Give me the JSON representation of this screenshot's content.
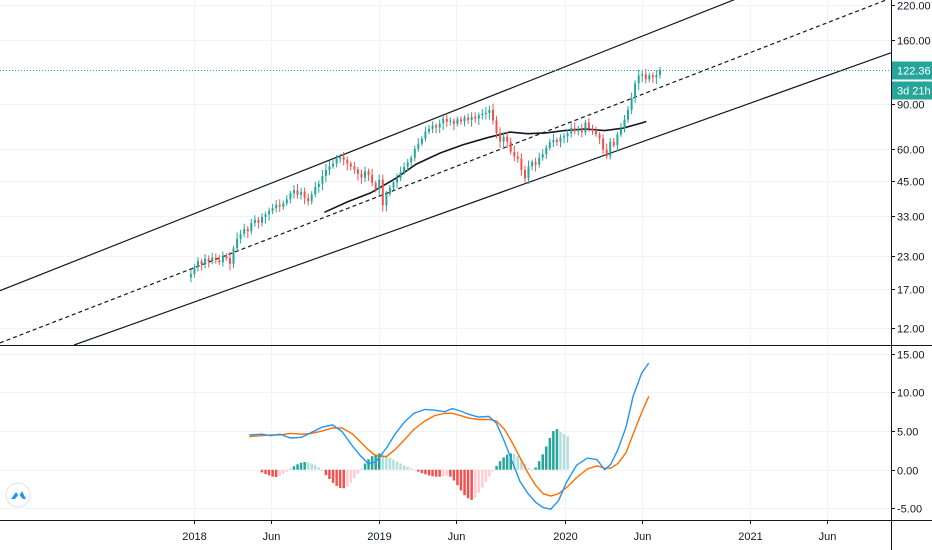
{
  "chart_data": [
    {
      "type": "candlestick",
      "y_scale": "log",
      "ylim": [
        10.3,
        230
      ],
      "y_ticks": [
        "220.00",
        "160.00",
        "122.36",
        "90.00",
        "60.00",
        "45.00",
        "33.00",
        "23.00",
        "17.00",
        "12.00"
      ],
      "y_tick_values": [
        220,
        160,
        90,
        60,
        45,
        33,
        23,
        17,
        12
      ],
      "x_ticks": [
        "2018",
        "Jun",
        "2019",
        "Jun",
        "2020",
        "Jun",
        "2021",
        "Jun"
      ],
      "x_tick_dates": [
        "2018-01-01",
        "2018-06-01",
        "2019-01-01",
        "2019-06-01",
        "2020-01-01",
        "2020-06-01",
        "2021-01-01",
        "2021-06-01"
      ],
      "xlim": [
        "2016-12-15",
        "2021-10-05"
      ],
      "colors": {
        "up": "#26a69a",
        "down": "#ef5350",
        "last_price": "#26a69a"
      },
      "last_price": {
        "value": 122.36,
        "label": "122.36",
        "countdown": "3d 21h"
      },
      "weekly_closes": [
        19.5,
        20.8,
        21.9,
        21.3,
        22.4,
        21.8,
        22.6,
        22.1,
        21.7,
        22.9,
        22.5,
        21.4,
        24.6,
        26.8,
        28.0,
        29.3,
        28.7,
        30.9,
        31.8,
        31.0,
        32.6,
        33.4,
        34.5,
        35.3,
        36.4,
        35.8,
        36.9,
        38.2,
        40.4,
        41.5,
        39.8,
        40.9,
        38.7,
        37.6,
        39.9,
        42.7,
        44.0,
        47.2,
        49.8,
        51.5,
        52.8,
        55.1,
        56.0,
        54.6,
        52.7,
        51.4,
        50.0,
        48.1,
        46.5,
        49.2,
        47.6,
        44.3,
        41.8,
        45.6,
        36.2,
        40.1,
        42.4,
        44.6,
        46.3,
        48.7,
        51.2,
        53.4,
        55.6,
        60.2,
        63.1,
        66.0,
        70.4,
        72.1,
        74.3,
        73.0,
        75.6,
        78.9,
        76.8,
        77.5,
        75.4,
        78.6,
        77.2,
        79.8,
        77.9,
        80.4,
        79.1,
        81.6,
        82.4,
        83.2,
        85.6,
        77.8,
        69.6,
        64.3,
        67.1,
        64.2,
        58.6,
        56.2,
        55.1,
        49.8,
        46.2,
        51.4,
        53.5,
        52.2,
        55.6,
        57.4,
        60.7,
        63.8,
        65.2,
        64.1,
        66.7,
        67.4,
        69.2,
        72.6,
        70.5,
        71.6,
        69.9,
        76.4,
        72.3,
        71.2,
        68.6,
        66.1,
        59.8,
        56.4,
        64.2,
        62.1,
        68.5,
        72.1,
        78.4,
        85.6,
        95.2,
        108.6,
        116.4,
        117.8,
        112.6,
        116.9,
        114.5,
        117.2,
        122.36
      ],
      "overlays": [
        {
          "name": "channel-upper",
          "from": [
            "2016-12-15",
            16.8
          ],
          "to": [
            "2020-12-22",
            240
          ]
        },
        {
          "name": "channel-mid",
          "from": [
            "2016-12-15",
            10.5
          ],
          "to": [
            "2021-10-05",
            234
          ]
        },
        {
          "name": "channel-lower",
          "from": [
            "2017-05-10",
            10.3
          ],
          "to": [
            "2021-10-05",
            143
          ]
        },
        {
          "name": "moving-average",
          "points": [
            [
              "2018-09-15",
              34.0
            ],
            [
              "2018-11-01",
              37.5
            ],
            [
              "2018-12-15",
              40.5
            ],
            [
              "2019-02-01",
              46.0
            ],
            [
              "2019-03-15",
              52.5
            ],
            [
              "2019-05-01",
              58.0
            ],
            [
              "2019-06-15",
              62.5
            ],
            [
              "2019-08-01",
              66.5
            ],
            [
              "2019-09-15",
              70.0
            ],
            [
              "2019-10-20",
              69.0
            ],
            [
              "2019-11-25",
              69.5
            ],
            [
              "2020-01-01",
              71.0
            ],
            [
              "2020-02-10",
              72.0
            ],
            [
              "2020-03-20",
              71.0
            ],
            [
              "2020-04-25",
              72.5
            ],
            [
              "2020-06-01",
              76.0
            ],
            [
              "2020-06-10",
              77.0
            ]
          ]
        }
      ]
    },
    {
      "type": "macd",
      "ylim": [
        -6.5,
        16
      ],
      "y_ticks": [
        "15.00",
        "10.00",
        "5.00",
        "0.00",
        "-5.00"
      ],
      "y_tick_values": [
        15,
        10,
        5,
        0,
        -5
      ],
      "colors": {
        "macd": "#2196f3",
        "signal": "#ff6d00",
        "hist_pos": "#26a69a",
        "hist_neg": "#ef5350"
      },
      "histogram_start": "2018-05-15",
      "histogram": [
        -0.35,
        -0.55,
        -0.75,
        -0.9,
        -0.95,
        -0.8,
        -0.6,
        -0.3,
        0.2,
        0.45,
        0.7,
        0.9,
        1.0,
        0.95,
        0.8,
        0.6,
        0.3,
        -0.2,
        -0.7,
        -1.2,
        -1.7,
        -2.1,
        -2.35,
        -2.4,
        -2.2,
        -1.7,
        -1.1,
        -0.5,
        0.15,
        0.8,
        1.35,
        1.75,
        2.0,
        2.1,
        2.0,
        1.8,
        1.55,
        1.3,
        1.05,
        0.8,
        0.55,
        0.35,
        0.15,
        -0.05,
        -0.25,
        -0.45,
        -0.6,
        -0.75,
        -0.85,
        -0.9,
        -0.9,
        -0.85,
        -0.8,
        -0.9,
        -1.4,
        -2.0,
        -2.7,
        -3.3,
        -3.7,
        -3.9,
        -3.6,
        -3.0,
        -2.3,
        -1.6,
        -0.9,
        -0.2,
        0.5,
        1.1,
        1.6,
        1.95,
        2.1,
        2.05,
        1.8,
        1.35,
        0.8,
        0.25,
        -0.2,
        0.3,
        1.1,
        2.0,
        3.0,
        4.1,
        5.0,
        5.25,
        4.9,
        4.6,
        4.3
      ],
      "macd_line": [
        [
          "2018-04-20",
          4.5
        ],
        [
          "2018-05-15",
          4.6
        ],
        [
          "2018-06-01",
          4.4
        ],
        [
          "2018-06-20",
          4.6
        ],
        [
          "2018-07-10",
          4.1
        ],
        [
          "2018-08-01",
          4.2
        ],
        [
          "2018-08-20",
          4.8
        ],
        [
          "2018-09-10",
          5.5
        ],
        [
          "2018-10-01",
          5.8
        ],
        [
          "2018-10-20",
          4.9
        ],
        [
          "2018-11-10",
          3.0
        ],
        [
          "2018-11-25",
          1.8
        ],
        [
          "2018-12-10",
          0.8
        ],
        [
          "2018-12-25",
          1.0
        ],
        [
          "2019-01-15",
          2.8
        ],
        [
          "2019-02-01",
          4.6
        ],
        [
          "2019-02-20",
          6.2
        ],
        [
          "2019-03-10",
          7.3
        ],
        [
          "2019-04-01",
          7.8
        ],
        [
          "2019-04-20",
          7.7
        ],
        [
          "2019-05-10",
          7.5
        ],
        [
          "2019-05-25",
          7.9
        ],
        [
          "2019-06-10",
          7.6
        ],
        [
          "2019-06-25",
          7.2
        ],
        [
          "2019-07-15",
          6.8
        ],
        [
          "2019-08-05",
          6.9
        ],
        [
          "2019-08-20",
          6.0
        ],
        [
          "2019-09-05",
          3.6
        ],
        [
          "2019-09-20",
          1.0
        ],
        [
          "2019-10-05",
          -1.5
        ],
        [
          "2019-10-20",
          -3.0
        ],
        [
          "2019-11-05",
          -4.2
        ],
        [
          "2019-11-20",
          -4.9
        ],
        [
          "2019-12-05",
          -5.1
        ],
        [
          "2019-12-20",
          -4.0
        ],
        [
          "2020-01-05",
          -1.6
        ],
        [
          "2020-01-25",
          0.6
        ],
        [
          "2020-02-15",
          1.5
        ],
        [
          "2020-03-05",
          1.3
        ],
        [
          "2020-03-20",
          0.0
        ],
        [
          "2020-04-01",
          0.7
        ],
        [
          "2020-04-15",
          2.6
        ],
        [
          "2020-05-01",
          5.5
        ],
        [
          "2020-05-15",
          9.5
        ],
        [
          "2020-06-01",
          12.5
        ],
        [
          "2020-06-15",
          13.8
        ]
      ],
      "signal_line": [
        [
          "2018-04-20",
          4.3
        ],
        [
          "2018-05-15",
          4.4
        ],
        [
          "2018-06-01",
          4.5
        ],
        [
          "2018-06-20",
          4.5
        ],
        [
          "2018-07-10",
          4.7
        ],
        [
          "2018-08-01",
          4.6
        ],
        [
          "2018-08-20",
          4.7
        ],
        [
          "2018-09-10",
          5.0
        ],
        [
          "2018-10-01",
          5.4
        ],
        [
          "2018-10-20",
          5.4
        ],
        [
          "2018-11-10",
          4.6
        ],
        [
          "2018-11-25",
          3.6
        ],
        [
          "2018-12-10",
          2.6
        ],
        [
          "2018-12-25",
          1.8
        ],
        [
          "2019-01-15",
          1.7
        ],
        [
          "2019-02-01",
          2.6
        ],
        [
          "2019-02-20",
          3.9
        ],
        [
          "2019-03-10",
          5.2
        ],
        [
          "2019-04-01",
          6.3
        ],
        [
          "2019-04-20",
          7.0
        ],
        [
          "2019-05-10",
          7.3
        ],
        [
          "2019-05-25",
          7.3
        ],
        [
          "2019-06-10",
          7.0
        ],
        [
          "2019-06-25",
          6.7
        ],
        [
          "2019-07-15",
          6.5
        ],
        [
          "2019-08-05",
          6.5
        ],
        [
          "2019-08-20",
          6.3
        ],
        [
          "2019-09-05",
          5.2
        ],
        [
          "2019-09-20",
          3.5
        ],
        [
          "2019-10-05",
          1.6
        ],
        [
          "2019-10-20",
          -0.3
        ],
        [
          "2019-11-05",
          -2.0
        ],
        [
          "2019-11-20",
          -3.1
        ],
        [
          "2019-12-05",
          -3.4
        ],
        [
          "2019-12-20",
          -3.1
        ],
        [
          "2020-01-05",
          -2.3
        ],
        [
          "2020-01-25",
          -1.0
        ],
        [
          "2020-02-15",
          0.1
        ],
        [
          "2020-03-05",
          0.5
        ],
        [
          "2020-03-20",
          0.2
        ],
        [
          "2020-04-01",
          0.2
        ],
        [
          "2020-04-15",
          0.8
        ],
        [
          "2020-05-01",
          2.2
        ],
        [
          "2020-05-15",
          4.6
        ],
        [
          "2020-06-01",
          7.4
        ],
        [
          "2020-06-15",
          9.5
        ]
      ]
    }
  ],
  "icons": {
    "logo": "tradingview-logo-icon"
  }
}
